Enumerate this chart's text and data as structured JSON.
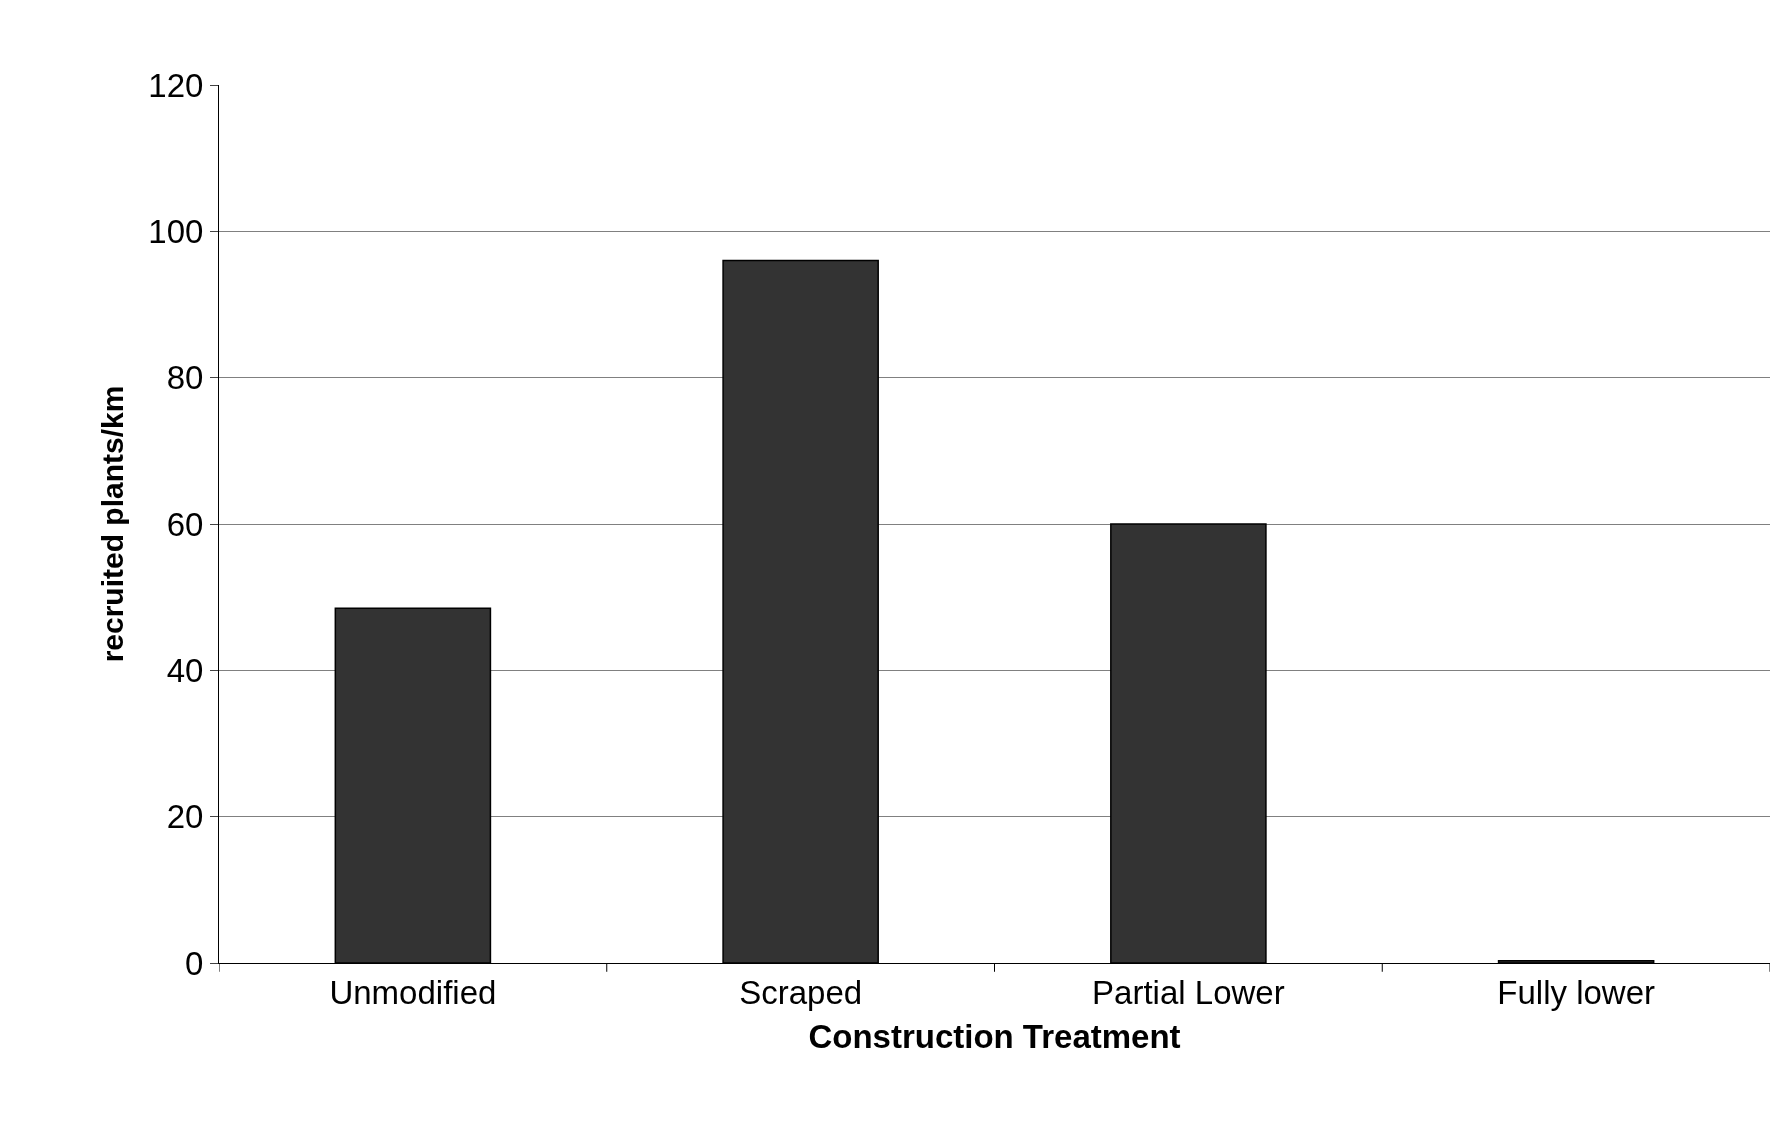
{
  "chart_data": {
    "type": "bar",
    "xlabel": "Construction Treatment",
    "ylabel": "recruited plants/km",
    "categories": [
      "Unmodified",
      "Scraped",
      "Partial Lower",
      "Fully lower"
    ],
    "values": [
      48.5,
      96,
      60,
      0.3
    ],
    "color": "#333333",
    "ylim": [
      0,
      120
    ],
    "yticks": [
      0,
      20,
      40,
      60,
      80,
      100,
      120
    ],
    "grid": "y"
  }
}
